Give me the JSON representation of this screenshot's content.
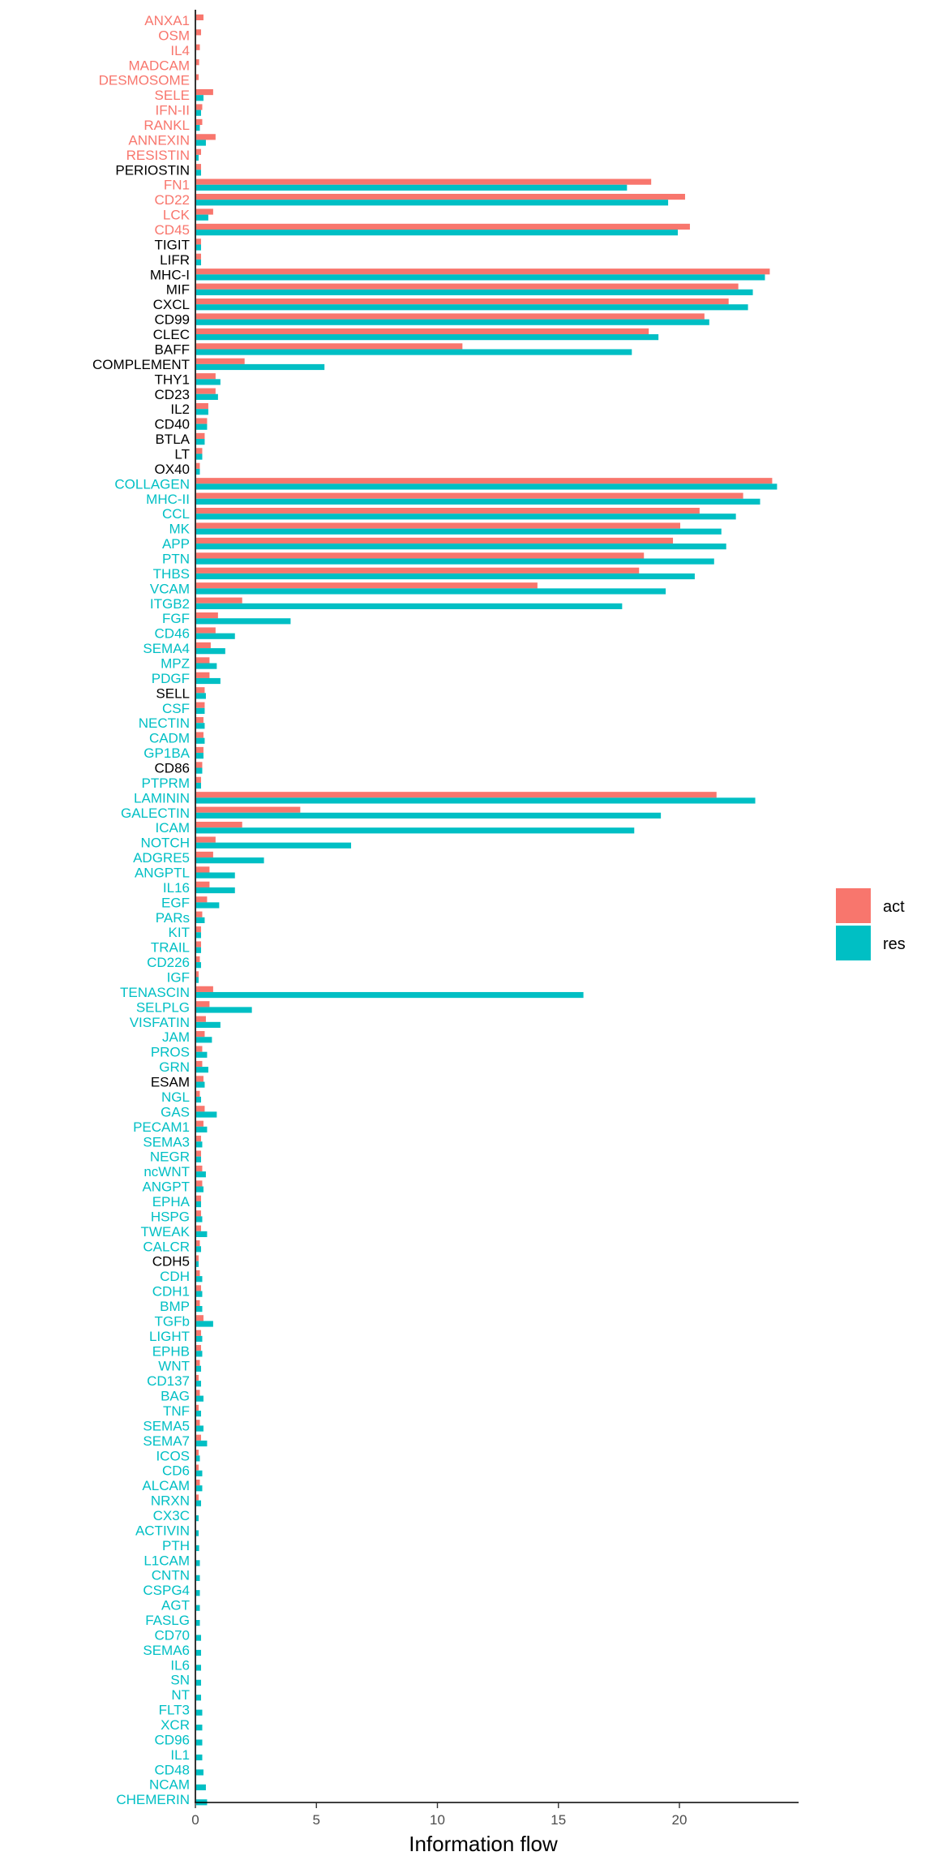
{
  "chart_data": {
    "type": "bar",
    "orientation": "horizontal",
    "xlabel": "Information flow",
    "ylabel": "",
    "xlim": [
      0,
      25
    ],
    "xticks": [
      0,
      5,
      10,
      15,
      20
    ],
    "grid": false,
    "legend_position": "right",
    "label_colors": {
      "act": "#F8766D",
      "res": "#00BFC4",
      "neutral": "#000000"
    },
    "series": [
      {
        "name": "act",
        "color": "#F8766D"
      },
      {
        "name": "res",
        "color": "#00BFC4"
      }
    ],
    "categories": [
      {
        "label": "ANXA1",
        "group": "act",
        "act": 0.3,
        "res": 0
      },
      {
        "label": "OSM",
        "group": "act",
        "act": 0.2,
        "res": 0
      },
      {
        "label": "IL4",
        "group": "act",
        "act": 0.15,
        "res": 0
      },
      {
        "label": "MADCAM",
        "group": "act",
        "act": 0.12,
        "res": 0
      },
      {
        "label": "DESMOSOME",
        "group": "act",
        "act": 0.1,
        "res": 0
      },
      {
        "label": "SELE",
        "group": "act",
        "act": 0.7,
        "res": 0.3
      },
      {
        "label": "IFN-II",
        "group": "act",
        "act": 0.25,
        "res": 0.2
      },
      {
        "label": "RANKL",
        "group": "act",
        "act": 0.25,
        "res": 0.15
      },
      {
        "label": "ANNEXIN",
        "group": "act",
        "act": 0.8,
        "res": 0.4
      },
      {
        "label": "RESISTIN",
        "group": "act",
        "act": 0.2,
        "res": 0.1
      },
      {
        "label": "PERIOSTIN",
        "group": "neutral",
        "act": 0.2,
        "res": 0.2
      },
      {
        "label": "FN1",
        "group": "act",
        "act": 18.8,
        "res": 17.8
      },
      {
        "label": "CD22",
        "group": "act",
        "act": 20.2,
        "res": 19.5
      },
      {
        "label": "LCK",
        "group": "act",
        "act": 0.7,
        "res": 0.5
      },
      {
        "label": "CD45",
        "group": "act",
        "act": 20.4,
        "res": 19.9
      },
      {
        "label": "TIGIT",
        "group": "neutral",
        "act": 0.2,
        "res": 0.2
      },
      {
        "label": "LIFR",
        "group": "neutral",
        "act": 0.2,
        "res": 0.2
      },
      {
        "label": "MHC-I",
        "group": "neutral",
        "act": 23.7,
        "res": 23.5
      },
      {
        "label": "MIF",
        "group": "neutral",
        "act": 22.4,
        "res": 23.0
      },
      {
        "label": "CXCL",
        "group": "neutral",
        "act": 22.0,
        "res": 22.8
      },
      {
        "label": "CD99",
        "group": "neutral",
        "act": 21.0,
        "res": 21.2
      },
      {
        "label": "CLEC",
        "group": "neutral",
        "act": 18.7,
        "res": 19.1
      },
      {
        "label": "BAFF",
        "group": "neutral",
        "act": 11.0,
        "res": 18.0
      },
      {
        "label": "COMPLEMENT",
        "group": "neutral",
        "act": 2.0,
        "res": 5.3
      },
      {
        "label": "THY1",
        "group": "neutral",
        "act": 0.8,
        "res": 1.0
      },
      {
        "label": "CD23",
        "group": "neutral",
        "act": 0.8,
        "res": 0.9
      },
      {
        "label": "IL2",
        "group": "neutral",
        "act": 0.5,
        "res": 0.5
      },
      {
        "label": "CD40",
        "group": "neutral",
        "act": 0.45,
        "res": 0.45
      },
      {
        "label": "BTLA",
        "group": "neutral",
        "act": 0.35,
        "res": 0.35
      },
      {
        "label": "LT",
        "group": "neutral",
        "act": 0.25,
        "res": 0.25
      },
      {
        "label": "OX40",
        "group": "neutral",
        "act": 0.15,
        "res": 0.15
      },
      {
        "label": "COLLAGEN",
        "group": "res",
        "act": 23.8,
        "res": 24.0
      },
      {
        "label": "MHC-II",
        "group": "res",
        "act": 22.6,
        "res": 23.3
      },
      {
        "label": "CCL",
        "group": "res",
        "act": 20.8,
        "res": 22.3
      },
      {
        "label": "MK",
        "group": "res",
        "act": 20.0,
        "res": 21.7
      },
      {
        "label": "APP",
        "group": "res",
        "act": 19.7,
        "res": 21.9
      },
      {
        "label": "PTN",
        "group": "res",
        "act": 18.5,
        "res": 21.4
      },
      {
        "label": "THBS",
        "group": "res",
        "act": 18.3,
        "res": 20.6
      },
      {
        "label": "VCAM",
        "group": "res",
        "act": 14.1,
        "res": 19.4
      },
      {
        "label": "ITGB2",
        "group": "res",
        "act": 1.9,
        "res": 17.6
      },
      {
        "label": "FGF",
        "group": "res",
        "act": 0.9,
        "res": 3.9
      },
      {
        "label": "CD46",
        "group": "res",
        "act": 0.8,
        "res": 1.6
      },
      {
        "label": "SEMA4",
        "group": "res",
        "act": 0.6,
        "res": 1.2
      },
      {
        "label": "MPZ",
        "group": "res",
        "act": 0.55,
        "res": 0.85
      },
      {
        "label": "PDGF",
        "group": "res",
        "act": 0.55,
        "res": 1.0
      },
      {
        "label": "SELL",
        "group": "neutral",
        "act": 0.35,
        "res": 0.4
      },
      {
        "label": "CSF",
        "group": "res",
        "act": 0.35,
        "res": 0.35
      },
      {
        "label": "NECTIN",
        "group": "res",
        "act": 0.3,
        "res": 0.35
      },
      {
        "label": "CADM",
        "group": "res",
        "act": 0.3,
        "res": 0.35
      },
      {
        "label": "GP1BA",
        "group": "res",
        "act": 0.3,
        "res": 0.3
      },
      {
        "label": "CD86",
        "group": "neutral",
        "act": 0.25,
        "res": 0.25
      },
      {
        "label": "PTPRM",
        "group": "res",
        "act": 0.2,
        "res": 0.2
      },
      {
        "label": "LAMININ",
        "group": "res",
        "act": 21.5,
        "res": 23.1
      },
      {
        "label": "GALECTIN",
        "group": "res",
        "act": 4.3,
        "res": 19.2
      },
      {
        "label": "ICAM",
        "group": "res",
        "act": 1.9,
        "res": 18.1
      },
      {
        "label": "NOTCH",
        "group": "res",
        "act": 0.8,
        "res": 6.4
      },
      {
        "label": "ADGRE5",
        "group": "res",
        "act": 0.7,
        "res": 2.8
      },
      {
        "label": "ANGPTL",
        "group": "res",
        "act": 0.55,
        "res": 1.6
      },
      {
        "label": "IL16",
        "group": "res",
        "act": 0.55,
        "res": 1.6
      },
      {
        "label": "EGF",
        "group": "res",
        "act": 0.45,
        "res": 0.95
      },
      {
        "label": "PARs",
        "group": "res",
        "act": 0.25,
        "res": 0.35
      },
      {
        "label": "KIT",
        "group": "res",
        "act": 0.2,
        "res": 0.2
      },
      {
        "label": "TRAIL",
        "group": "res",
        "act": 0.2,
        "res": 0.2
      },
      {
        "label": "CD226",
        "group": "res",
        "act": 0.15,
        "res": 0.2
      },
      {
        "label": "IGF",
        "group": "res",
        "act": 0.1,
        "res": 0.1
      },
      {
        "label": "TENASCIN",
        "group": "res",
        "act": 0.7,
        "res": 16.0
      },
      {
        "label": "SELPLG",
        "group": "res",
        "act": 0.55,
        "res": 2.3
      },
      {
        "label": "VISFATIN",
        "group": "res",
        "act": 0.4,
        "res": 1.0
      },
      {
        "label": "JAM",
        "group": "res",
        "act": 0.35,
        "res": 0.65
      },
      {
        "label": "PROS",
        "group": "res",
        "act": 0.25,
        "res": 0.45
      },
      {
        "label": "GRN",
        "group": "res",
        "act": 0.25,
        "res": 0.5
      },
      {
        "label": "ESAM",
        "group": "neutral",
        "act": 0.3,
        "res": 0.35
      },
      {
        "label": "NGL",
        "group": "res",
        "act": 0.15,
        "res": 0.2
      },
      {
        "label": "GAS",
        "group": "res",
        "act": 0.35,
        "res": 0.85
      },
      {
        "label": "PECAM1",
        "group": "res",
        "act": 0.3,
        "res": 0.45
      },
      {
        "label": "SEMA3",
        "group": "res",
        "act": 0.2,
        "res": 0.25
      },
      {
        "label": "NEGR",
        "group": "res",
        "act": 0.2,
        "res": 0.2
      },
      {
        "label": "ncWNT",
        "group": "res",
        "act": 0.25,
        "res": 0.4
      },
      {
        "label": "ANGPT",
        "group": "res",
        "act": 0.25,
        "res": 0.3
      },
      {
        "label": "EPHA",
        "group": "res",
        "act": 0.2,
        "res": 0.2
      },
      {
        "label": "HSPG",
        "group": "res",
        "act": 0.2,
        "res": 0.25
      },
      {
        "label": "TWEAK",
        "group": "res",
        "act": 0.2,
        "res": 0.45
      },
      {
        "label": "CALCR",
        "group": "res",
        "act": 0.15,
        "res": 0.2
      },
      {
        "label": "CDH5",
        "group": "neutral",
        "act": 0.1,
        "res": 0.1
      },
      {
        "label": "CDH",
        "group": "res",
        "act": 0.15,
        "res": 0.25
      },
      {
        "label": "CDH1",
        "group": "res",
        "act": 0.2,
        "res": 0.25
      },
      {
        "label": "BMP",
        "group": "res",
        "act": 0.15,
        "res": 0.25
      },
      {
        "label": "TGFb",
        "group": "res",
        "act": 0.3,
        "res": 0.7
      },
      {
        "label": "LIGHT",
        "group": "res",
        "act": 0.2,
        "res": 0.25
      },
      {
        "label": "EPHB",
        "group": "res",
        "act": 0.2,
        "res": 0.25
      },
      {
        "label": "WNT",
        "group": "res",
        "act": 0.15,
        "res": 0.2
      },
      {
        "label": "CD137",
        "group": "res",
        "act": 0.1,
        "res": 0.2
      },
      {
        "label": "BAG",
        "group": "res",
        "act": 0.15,
        "res": 0.3
      },
      {
        "label": "TNF",
        "group": "res",
        "act": 0.1,
        "res": 0.2
      },
      {
        "label": "SEMA5",
        "group": "res",
        "act": 0.15,
        "res": 0.3
      },
      {
        "label": "SEMA7",
        "group": "res",
        "act": 0.2,
        "res": 0.45
      },
      {
        "label": "ICOS",
        "group": "res",
        "act": 0.1,
        "res": 0.15
      },
      {
        "label": "CD6",
        "group": "res",
        "act": 0.1,
        "res": 0.25
      },
      {
        "label": "ALCAM",
        "group": "res",
        "act": 0.15,
        "res": 0.25
      },
      {
        "label": "NRXN",
        "group": "res",
        "act": 0.1,
        "res": 0.2
      },
      {
        "label": "CX3C",
        "group": "res",
        "act": 0,
        "res": 0.1
      },
      {
        "label": "ACTIVIN",
        "group": "res",
        "act": 0,
        "res": 0.1
      },
      {
        "label": "PTH",
        "group": "res",
        "act": 0,
        "res": 0.12
      },
      {
        "label": "L1CAM",
        "group": "res",
        "act": 0,
        "res": 0.15
      },
      {
        "label": "CNTN",
        "group": "res",
        "act": 0,
        "res": 0.15
      },
      {
        "label": "CSPG4",
        "group": "res",
        "act": 0,
        "res": 0.15
      },
      {
        "label": "AGT",
        "group": "res",
        "act": 0,
        "res": 0.15
      },
      {
        "label": "FASLG",
        "group": "res",
        "act": 0,
        "res": 0.15
      },
      {
        "label": "CD70",
        "group": "res",
        "act": 0,
        "res": 0.2
      },
      {
        "label": "SEMA6",
        "group": "res",
        "act": 0,
        "res": 0.2
      },
      {
        "label": "IL6",
        "group": "res",
        "act": 0,
        "res": 0.2
      },
      {
        "label": "SN",
        "group": "res",
        "act": 0,
        "res": 0.2
      },
      {
        "label": "NT",
        "group": "res",
        "act": 0,
        "res": 0.2
      },
      {
        "label": "FLT3",
        "group": "res",
        "act": 0,
        "res": 0.25
      },
      {
        "label": "XCR",
        "group": "res",
        "act": 0,
        "res": 0.25
      },
      {
        "label": "CD96",
        "group": "res",
        "act": 0,
        "res": 0.25
      },
      {
        "label": "IL1",
        "group": "res",
        "act": 0,
        "res": 0.25
      },
      {
        "label": "CD48",
        "group": "res",
        "act": 0,
        "res": 0.3
      },
      {
        "label": "NCAM",
        "group": "res",
        "act": 0,
        "res": 0.4
      },
      {
        "label": "CHEMERIN",
        "group": "res",
        "act": 0,
        "res": 0.45
      }
    ]
  }
}
